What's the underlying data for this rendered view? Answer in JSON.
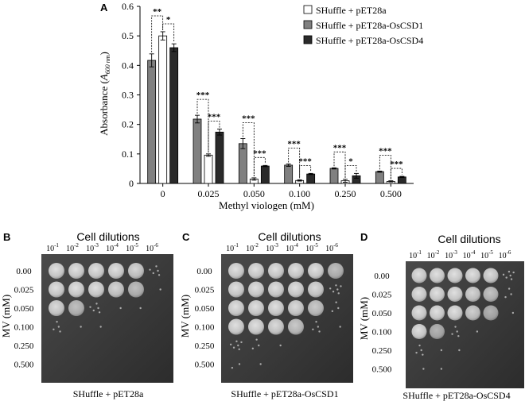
{
  "chart_data": {
    "type": "bar",
    "panel_label": "A",
    "categories": [
      "0",
      "0.025",
      "0.050",
      "0.100",
      "0.250",
      "0.500"
    ],
    "xlabel": "Methyl viologen (mM)",
    "ylabel_main": "Absorbance (",
    "ylabel_sym": "A",
    "ylabel_sub": "600 nm",
    "ylabel_end": ")",
    "ylim": [
      0,
      0.6
    ],
    "yticks": [
      "0",
      "0.1",
      "0.2",
      "0.3",
      "0.4",
      "0.5",
      "0.6"
    ],
    "grid": false,
    "legend_position": "top-right",
    "series": [
      {
        "name": "SHuffle + pET28a-OsCSD1",
        "color": "#808080",
        "values": [
          0.417,
          0.218,
          0.135,
          0.062,
          0.051,
          0.04
        ],
        "errors": [
          0.022,
          0.013,
          0.017,
          0.004,
          0.002,
          0.002
        ]
      },
      {
        "name": "SHuffle + pET28a",
        "color": "#ffffff",
        "values": [
          0.5,
          0.096,
          0.015,
          0.01,
          0.009,
          0.007
        ],
        "errors": [
          0.014,
          0.004,
          0.004,
          0.002,
          0.005,
          0.002
        ]
      },
      {
        "name": "SHuffle + pET28a-OsCSD4",
        "color": "#2a2a2a",
        "values": [
          0.46,
          0.174,
          0.059,
          0.032,
          0.026,
          0.022
        ],
        "errors": [
          0.013,
          0.01,
          0.002,
          0.002,
          0.008,
          0.002
        ]
      }
    ],
    "legend_order": [
      1,
      0,
      2
    ],
    "significance": [
      {
        "category": 0,
        "pairs": [
          {
            "between": [
              0,
              1
            ],
            "label": "**"
          },
          {
            "between": [
              1,
              2
            ],
            "label": "*"
          }
        ]
      },
      {
        "category": 1,
        "pairs": [
          {
            "between": [
              0,
              1
            ],
            "label": "***"
          },
          {
            "between": [
              1,
              2
            ],
            "label": "***"
          }
        ]
      },
      {
        "category": 2,
        "pairs": [
          {
            "between": [
              0,
              1
            ],
            "label": "***"
          },
          {
            "between": [
              1,
              2
            ],
            "label": "***"
          }
        ]
      },
      {
        "category": 3,
        "pairs": [
          {
            "between": [
              0,
              1
            ],
            "label": "***"
          },
          {
            "between": [
              1,
              2
            ],
            "label": "***"
          }
        ]
      },
      {
        "category": 4,
        "pairs": [
          {
            "between": [
              0,
              1
            ],
            "label": "***"
          },
          {
            "between": [
              1,
              2
            ],
            "label": "*"
          }
        ]
      },
      {
        "category": 5,
        "pairs": [
          {
            "between": [
              0,
              1
            ],
            "label": "***"
          },
          {
            "between": [
              1,
              2
            ],
            "label": "***"
          }
        ]
      }
    ]
  },
  "plates": [
    {
      "panel_label": "B",
      "header": "Cell dilutions",
      "caption": "SHuffle + pET28a",
      "growth": [
        [
          1,
          1,
          1,
          1,
          0.9,
          0.35
        ],
        [
          1,
          1,
          1,
          0.9,
          0.7,
          0.05
        ],
        [
          0.95,
          0.7,
          0.35,
          0.05,
          0.02,
          0
        ],
        [
          0.3,
          0.03,
          0.01,
          0,
          0,
          0
        ],
        [
          0,
          0,
          0,
          0,
          0,
          0
        ],
        [
          0,
          0,
          0,
          0,
          0,
          0
        ]
      ]
    },
    {
      "panel_label": "C",
      "header": "Cell dilutions",
      "caption": "SHuffle + pET28a-OsCSD1",
      "growth": [
        [
          1,
          1,
          1,
          1,
          1,
          0.7
        ],
        [
          1,
          1,
          1,
          1,
          0.95,
          0.4
        ],
        [
          1,
          1,
          1,
          0.95,
          0.8,
          0.2
        ],
        [
          1,
          1,
          0.95,
          0.8,
          0.3,
          0.02
        ],
        [
          0.45,
          0.2,
          0.05,
          0,
          0,
          0
        ],
        [
          0.12,
          0.03,
          0,
          0,
          0,
          0
        ]
      ]
    },
    {
      "panel_label": "D",
      "header": "Cell dilutions",
      "caption": "SHuffle + pET28a-OsCSD4",
      "growth": [
        [
          1,
          1,
          1,
          1,
          0.95,
          0.45
        ],
        [
          1,
          1,
          1,
          0.9,
          0.75,
          0.2
        ],
        [
          1,
          1,
          1,
          0.85,
          0.6,
          0.1
        ],
        [
          1,
          0.6,
          0.3,
          0.05,
          0,
          0
        ],
        [
          0.25,
          0.05,
          0.02,
          0,
          0,
          0
        ],
        [
          0.1,
          0.02,
          0,
          0,
          0,
          0
        ]
      ]
    }
  ],
  "plate_text": {
    "dilution_base": "10",
    "dilution_exponents": [
      "-1",
      "-2",
      "-3",
      "-4",
      "-5",
      "-6"
    ],
    "mv_label": "MV (mM)",
    "mv_rows": [
      "0.00",
      "0.025",
      "0.050",
      "0.100",
      "0.250",
      "0.500"
    ]
  }
}
